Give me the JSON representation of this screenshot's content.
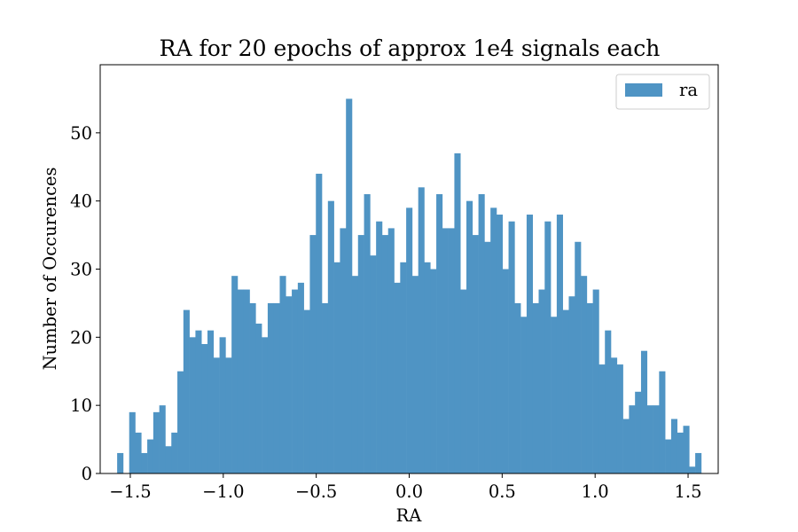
{
  "chart_data": {
    "type": "bar",
    "title": "RA for 20 epochs of approx 1e4 signals each",
    "xlabel": "RA",
    "ylabel": "Number of Occurences",
    "xlim": [
      -1.662,
      1.662
    ],
    "ylim": [
      0,
      60
    ],
    "xticks": [
      -1.5,
      -1.0,
      -0.5,
      0.0,
      0.5,
      1.0,
      1.5
    ],
    "xtick_labels": [
      "−1.5",
      "−1.0",
      "−0.5",
      "0.0",
      "0.5",
      "1.0",
      "1.5"
    ],
    "yticks": [
      0,
      10,
      20,
      30,
      40,
      50
    ],
    "ytick_labels": [
      "0",
      "10",
      "20",
      "30",
      "40",
      "50"
    ],
    "bin_start": -1.5708,
    "bin_end": 1.5708,
    "legend": {
      "position": "top-right",
      "entries": [
        "ra"
      ]
    },
    "color": "#4f94c4",
    "grid": false,
    "series": [
      {
        "name": "ra",
        "values": [
          3,
          0,
          9,
          6,
          3,
          5,
          9,
          10,
          4,
          6,
          15,
          24,
          20,
          21,
          19,
          21,
          17,
          20,
          17,
          29,
          27,
          27,
          25,
          22,
          20,
          25,
          25,
          29,
          26,
          27,
          28,
          24,
          35,
          44,
          25,
          40,
          31,
          36,
          55,
          29,
          35,
          41,
          32,
          37,
          35,
          36,
          28,
          31,
          39,
          29,
          42,
          31,
          30,
          41,
          36,
          36,
          47,
          27,
          40,
          35,
          41,
          34,
          39,
          38,
          30,
          37,
          25,
          23,
          38,
          25,
          27,
          37,
          23,
          38,
          24,
          26,
          34,
          29,
          25,
          27,
          16,
          21,
          17,
          16,
          8,
          10,
          12,
          18,
          10,
          10,
          15,
          5,
          8,
          6,
          7,
          1,
          3
        ]
      }
    ]
  }
}
